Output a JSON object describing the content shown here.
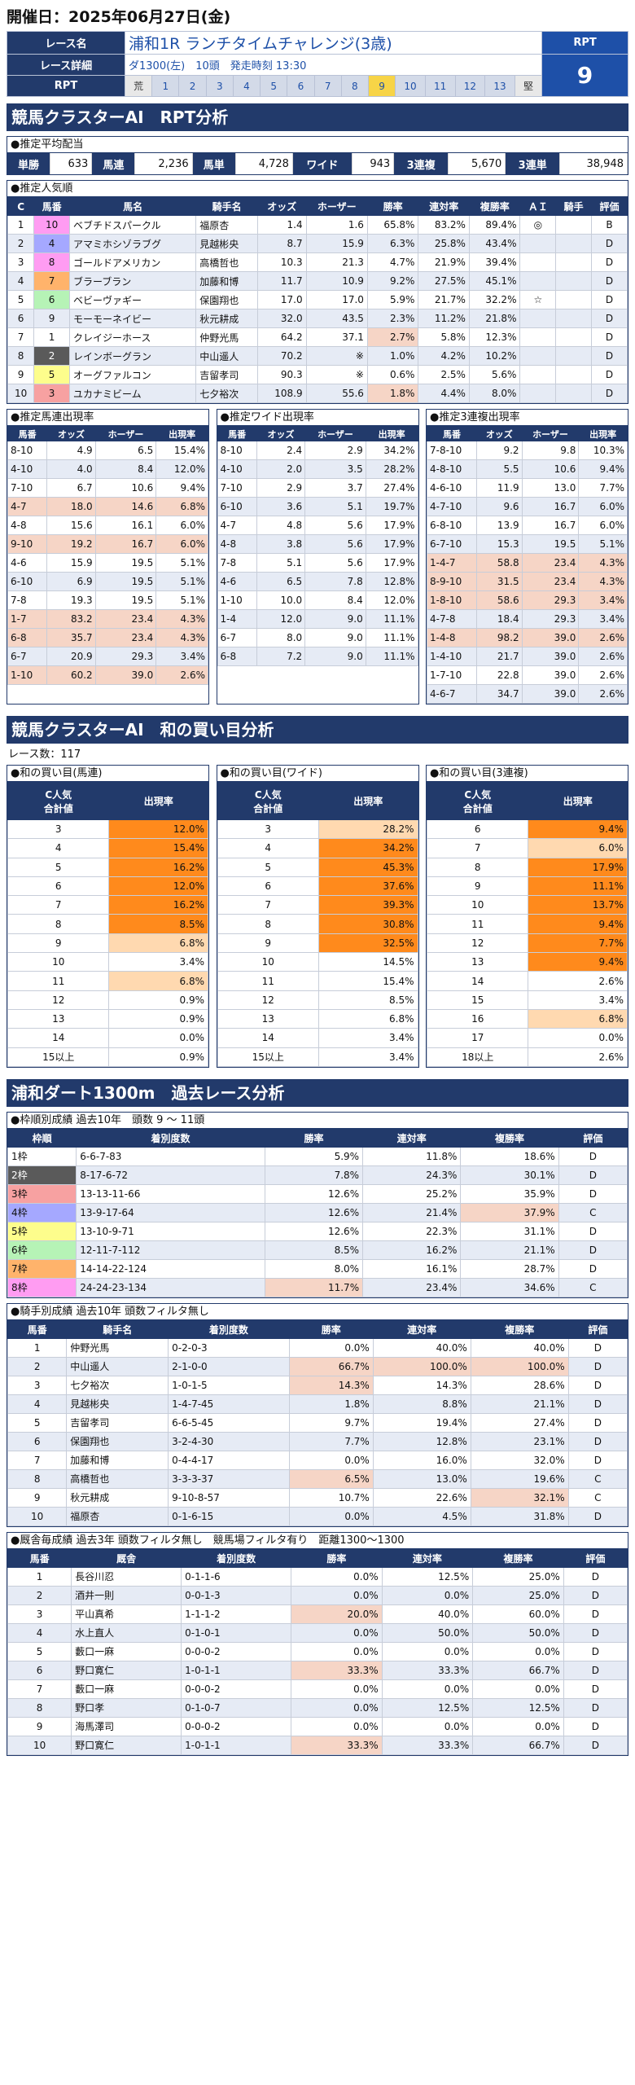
{
  "header": {
    "date_label": "開催日：2025年06月27日(金)",
    "race_name_label": "レース名",
    "race_name": "浦和1R ランチタイムチャレンジ(3歳)",
    "detail_label": "レース詳細",
    "detail": "ダ1300(左)　10頭　発走時刻 13:30",
    "rpt_label": "RPT",
    "rpt_scale": [
      "荒",
      "1",
      "2",
      "3",
      "4",
      "5",
      "6",
      "7",
      "8",
      "9",
      "10",
      "11",
      "12",
      "13",
      "堅"
    ],
    "rpt_selected": "9",
    "rpt_head": "RPT",
    "rpt_value": "9"
  },
  "section1": {
    "title": "競馬クラスターAI　RPT分析"
  },
  "payout": {
    "caption": "●推定平均配当",
    "items": [
      {
        "label": "単勝",
        "value": "633"
      },
      {
        "label": "馬連",
        "value": "2,236"
      },
      {
        "label": "馬単",
        "value": "4,728"
      },
      {
        "label": "ワイド",
        "value": "943"
      },
      {
        "label": "3連複",
        "value": "5,670"
      },
      {
        "label": "3連単",
        "value": "38,948"
      }
    ]
  },
  "popularity": {
    "caption": "●推定人気順",
    "headers": [
      "C",
      "馬番",
      "馬名",
      "騎手名",
      "オッズ",
      "ホーザー",
      "勝率",
      "連対率",
      "複勝率",
      "ＡＩ",
      "騎手",
      "評価"
    ],
    "rows": [
      {
        "c": "1",
        "waku": "8",
        "num": "10",
        "name": "ベブチドスパークル",
        "jockey": "福原杏",
        "odds": "1.4",
        "hoser": "1.6",
        "win": "65.8%",
        "place2": "83.2%",
        "place3": "89.4%",
        "ai": "◎",
        "jk": "",
        "grade": "B",
        "hl": ""
      },
      {
        "c": "2",
        "waku": "4",
        "num": "4",
        "name": "アマミホシゾラブグ",
        "jockey": "見越彬央",
        "odds": "8.7",
        "hoser": "15.9",
        "win": "6.3%",
        "place2": "25.8%",
        "place3": "43.4%",
        "ai": "",
        "jk": "",
        "grade": "D",
        "hl": ""
      },
      {
        "c": "3",
        "waku": "8",
        "num": "8",
        "name": "ゴールドアメリカン",
        "jockey": "高橋哲也",
        "odds": "10.3",
        "hoser": "21.3",
        "win": "4.7%",
        "place2": "21.9%",
        "place3": "39.4%",
        "ai": "",
        "jk": "",
        "grade": "D",
        "hl": ""
      },
      {
        "c": "4",
        "waku": "7",
        "num": "7",
        "name": "ブラーブラン",
        "jockey": "加藤和博",
        "odds": "11.7",
        "hoser": "10.9",
        "win": "9.2%",
        "place2": "27.5%",
        "place3": "45.1%",
        "ai": "",
        "jk": "",
        "grade": "D",
        "hl": ""
      },
      {
        "c": "5",
        "waku": "6",
        "num": "6",
        "name": "ベビーヴァギー",
        "jockey": "保園翔也",
        "odds": "17.0",
        "hoser": "17.0",
        "win": "5.9%",
        "place2": "21.7%",
        "place3": "32.2%",
        "ai": "☆",
        "jk": "",
        "grade": "D",
        "hl": ""
      },
      {
        "c": "6",
        "waku": "9",
        "num": "9",
        "name": "モーモーネイビー",
        "jockey": "秋元耕成",
        "odds": "32.0",
        "hoser": "43.5",
        "win": "2.3%",
        "place2": "11.2%",
        "place3": "21.8%",
        "ai": "",
        "jk": "",
        "grade": "D",
        "hl": ""
      },
      {
        "c": "7",
        "waku": "1",
        "num": "1",
        "name": "クレイジーホース",
        "jockey": "仲野光馬",
        "odds": "64.2",
        "hoser": "37.1",
        "win": "2.7%",
        "place2": "5.8%",
        "place3": "12.3%",
        "ai": "",
        "jk": "",
        "grade": "D",
        "hl": "win"
      },
      {
        "c": "8",
        "waku": "2",
        "num": "2",
        "name": "レインボーグラン",
        "jockey": "中山遥人",
        "odds": "70.2",
        "hoser": "※",
        "win": "1.0%",
        "place2": "4.2%",
        "place3": "10.2%",
        "ai": "",
        "jk": "",
        "grade": "D",
        "hl": ""
      },
      {
        "c": "9",
        "waku": "5",
        "num": "5",
        "name": "オーグファルコン",
        "jockey": "吉留孝司",
        "odds": "90.3",
        "hoser": "※",
        "win": "0.6%",
        "place2": "2.5%",
        "place3": "5.6%",
        "ai": "",
        "jk": "",
        "grade": "D",
        "hl": ""
      },
      {
        "c": "10",
        "waku": "3",
        "num": "3",
        "name": "ユカナミビーム",
        "jockey": "七夕裕次",
        "odds": "108.9",
        "hoser": "55.6",
        "win": "1.8%",
        "place2": "4.4%",
        "place3": "8.0%",
        "ai": "",
        "jk": "",
        "grade": "D",
        "hl": "win"
      }
    ]
  },
  "rates": [
    {
      "caption": "●推定馬連出現率",
      "headers": [
        "馬番",
        "オッズ",
        "ホーザー",
        "出現率"
      ],
      "rows": [
        [
          "8-10",
          "4.9",
          "6.5",
          "15.4%",
          ""
        ],
        [
          "4-10",
          "4.0",
          "8.4",
          "12.0%",
          ""
        ],
        [
          "7-10",
          "6.7",
          "10.6",
          "9.4%",
          ""
        ],
        [
          "4-7",
          "18.0",
          "14.6",
          "6.8%",
          "pk"
        ],
        [
          "4-8",
          "15.6",
          "16.1",
          "6.0%",
          ""
        ],
        [
          "9-10",
          "19.2",
          "16.7",
          "6.0%",
          "pk"
        ],
        [
          "4-6",
          "15.9",
          "19.5",
          "5.1%",
          ""
        ],
        [
          "6-10",
          "6.9",
          "19.5",
          "5.1%",
          ""
        ],
        [
          "7-8",
          "19.3",
          "19.5",
          "5.1%",
          ""
        ],
        [
          "1-7",
          "83.2",
          "23.4",
          "4.3%",
          "pk"
        ],
        [
          "6-8",
          "35.7",
          "23.4",
          "4.3%",
          "pk"
        ],
        [
          "6-7",
          "20.9",
          "29.3",
          "3.4%",
          ""
        ],
        [
          "1-10",
          "60.2",
          "39.0",
          "2.6%",
          "pk"
        ]
      ]
    },
    {
      "caption": "●推定ワイド出現率",
      "headers": [
        "馬番",
        "オッズ",
        "ホーザー",
        "出現率"
      ],
      "rows": [
        [
          "8-10",
          "2.4",
          "2.9",
          "34.2%",
          ""
        ],
        [
          "4-10",
          "2.0",
          "3.5",
          "28.2%",
          ""
        ],
        [
          "7-10",
          "2.9",
          "3.7",
          "27.4%",
          ""
        ],
        [
          "6-10",
          "3.6",
          "5.1",
          "19.7%",
          ""
        ],
        [
          "4-7",
          "4.8",
          "5.6",
          "17.9%",
          ""
        ],
        [
          "4-8",
          "3.8",
          "5.6",
          "17.9%",
          ""
        ],
        [
          "7-8",
          "5.1",
          "5.6",
          "17.9%",
          ""
        ],
        [
          "4-6",
          "6.5",
          "7.8",
          "12.8%",
          ""
        ],
        [
          "1-10",
          "10.0",
          "8.4",
          "12.0%",
          ""
        ],
        [
          "1-4",
          "12.0",
          "9.0",
          "11.1%",
          ""
        ],
        [
          "6-7",
          "8.0",
          "9.0",
          "11.1%",
          ""
        ],
        [
          "6-8",
          "7.2",
          "9.0",
          "11.1%",
          ""
        ]
      ]
    },
    {
      "caption": "●推定3連複出現率",
      "headers": [
        "馬番",
        "オッズ",
        "ホーザー",
        "出現率"
      ],
      "rows": [
        [
          "7-8-10",
          "9.2",
          "9.8",
          "10.3%",
          ""
        ],
        [
          "4-8-10",
          "5.5",
          "10.6",
          "9.4%",
          ""
        ],
        [
          "4-6-10",
          "11.9",
          "13.0",
          "7.7%",
          ""
        ],
        [
          "4-7-10",
          "9.6",
          "16.7",
          "6.0%",
          ""
        ],
        [
          "6-8-10",
          "13.9",
          "16.7",
          "6.0%",
          ""
        ],
        [
          "6-7-10",
          "15.3",
          "19.5",
          "5.1%",
          ""
        ],
        [
          "1-4-7",
          "58.8",
          "23.4",
          "4.3%",
          "pk"
        ],
        [
          "8-9-10",
          "31.5",
          "23.4",
          "4.3%",
          "pk"
        ],
        [
          "1-8-10",
          "58.6",
          "29.3",
          "3.4%",
          "pk"
        ],
        [
          "4-7-8",
          "18.4",
          "29.3",
          "3.4%",
          ""
        ],
        [
          "1-4-8",
          "98.2",
          "39.0",
          "2.6%",
          "pk"
        ],
        [
          "1-4-10",
          "21.7",
          "39.0",
          "2.6%",
          ""
        ],
        [
          "1-7-10",
          "22.8",
          "39.0",
          "2.6%",
          ""
        ],
        [
          "4-6-7",
          "34.7",
          "39.0",
          "2.6%",
          ""
        ]
      ]
    }
  ],
  "section2": {
    "title": "競馬クラスターAI　和の買い目分析",
    "race_count": "レース数：117"
  },
  "buy": [
    {
      "caption": "●和の買い目(馬連)",
      "headers": [
        "C人気\n合計値",
        "出現率"
      ],
      "rows": [
        [
          "3",
          "12.0%",
          "o1"
        ],
        [
          "4",
          "15.4%",
          "o1"
        ],
        [
          "5",
          "16.2%",
          "o1"
        ],
        [
          "6",
          "12.0%",
          "o1"
        ],
        [
          "7",
          "16.2%",
          "o1"
        ],
        [
          "8",
          "8.5%",
          "o1"
        ],
        [
          "9",
          "6.8%",
          "o3"
        ],
        [
          "10",
          "3.4%",
          ""
        ],
        [
          "11",
          "6.8%",
          "o3"
        ],
        [
          "12",
          "0.9%",
          ""
        ],
        [
          "13",
          "0.9%",
          ""
        ],
        [
          "14",
          "0.0%",
          ""
        ],
        [
          "15以上",
          "0.9%",
          ""
        ]
      ]
    },
    {
      "caption": "●和の買い目(ワイド)",
      "headers": [
        "C人気\n合計値",
        "出現率"
      ],
      "rows": [
        [
          "3",
          "28.2%",
          "o3"
        ],
        [
          "4",
          "34.2%",
          "o1"
        ],
        [
          "5",
          "45.3%",
          "o1"
        ],
        [
          "6",
          "37.6%",
          "o1"
        ],
        [
          "7",
          "39.3%",
          "o1"
        ],
        [
          "8",
          "30.8%",
          "o1"
        ],
        [
          "9",
          "32.5%",
          "o1"
        ],
        [
          "10",
          "14.5%",
          ""
        ],
        [
          "11",
          "15.4%",
          ""
        ],
        [
          "12",
          "8.5%",
          ""
        ],
        [
          "13",
          "6.8%",
          ""
        ],
        [
          "14",
          "3.4%",
          ""
        ],
        [
          "15以上",
          "3.4%",
          ""
        ]
      ]
    },
    {
      "caption": "●和の買い目(3連複)",
      "headers": [
        "C人気\n合計値",
        "出現率"
      ],
      "rows": [
        [
          "6",
          "9.4%",
          "o1"
        ],
        [
          "7",
          "6.0%",
          "o3"
        ],
        [
          "8",
          "17.9%",
          "o1"
        ],
        [
          "9",
          "11.1%",
          "o1"
        ],
        [
          "10",
          "13.7%",
          "o1"
        ],
        [
          "11",
          "9.4%",
          "o1"
        ],
        [
          "12",
          "7.7%",
          "o1"
        ],
        [
          "13",
          "9.4%",
          "o1"
        ],
        [
          "14",
          "2.6%",
          ""
        ],
        [
          "15",
          "3.4%",
          ""
        ],
        [
          "16",
          "6.8%",
          "o3"
        ],
        [
          "17",
          "0.0%",
          ""
        ],
        [
          "18以上",
          "2.6%",
          ""
        ]
      ]
    }
  ],
  "section3": {
    "title": "浦和ダート1300m　過去レース分析"
  },
  "waku_table": {
    "caption": "●枠順別成績 過去10年　頭数 9 ～ 11頭",
    "headers": [
      "枠順",
      "着別度数",
      "勝率",
      "連対率",
      "複勝率",
      "評価"
    ],
    "rows": [
      {
        "waku": "1枠",
        "cls": "w1",
        "rec": "6-6-7-83",
        "win": "5.9%",
        "p2": "11.8%",
        "p3": "18.6%",
        "grade": "D",
        "hw": "",
        "hp3": ""
      },
      {
        "waku": "2枠",
        "cls": "w2",
        "rec": "8-17-6-72",
        "win": "7.8%",
        "p2": "24.3%",
        "p3": "30.1%",
        "grade": "D",
        "hw": "",
        "hp3": ""
      },
      {
        "waku": "3枠",
        "cls": "w3",
        "rec": "13-13-11-66",
        "win": "12.6%",
        "p2": "25.2%",
        "p3": "35.9%",
        "grade": "D",
        "hw": "",
        "hp3": ""
      },
      {
        "waku": "4枠",
        "cls": "w4",
        "rec": "13-9-17-64",
        "win": "12.6%",
        "p2": "21.4%",
        "p3": "37.9%",
        "grade": "C",
        "hw": "",
        "hp3": "pk"
      },
      {
        "waku": "5枠",
        "cls": "w5",
        "rec": "13-10-9-71",
        "win": "12.6%",
        "p2": "22.3%",
        "p3": "31.1%",
        "grade": "D",
        "hw": "",
        "hp3": ""
      },
      {
        "waku": "6枠",
        "cls": "w6",
        "rec": "12-11-7-112",
        "win": "8.5%",
        "p2": "16.2%",
        "p3": "21.1%",
        "grade": "D",
        "hw": "",
        "hp3": ""
      },
      {
        "waku": "7枠",
        "cls": "w7",
        "rec": "14-14-22-124",
        "win": "8.0%",
        "p2": "16.1%",
        "p3": "28.7%",
        "grade": "D",
        "hw": "",
        "hp3": ""
      },
      {
        "waku": "8枠",
        "cls": "w8",
        "rec": "24-24-23-134",
        "win": "11.7%",
        "p2": "23.4%",
        "p3": "34.6%",
        "grade": "C",
        "hw": "pk",
        "hp3": ""
      }
    ]
  },
  "jockey_table": {
    "caption": "●騎手別成績 過去10年 頭数フィルタ無し",
    "headers": [
      "馬番",
      "騎手名",
      "着別度数",
      "勝率",
      "連対率",
      "複勝率",
      "評価"
    ],
    "rows": [
      {
        "num": "1",
        "name": "仲野光馬",
        "rec": "0-2-0-3",
        "win": "0.0%",
        "p2": "40.0%",
        "p3": "40.0%",
        "grade": "D",
        "hw": "",
        "hp2": "",
        "hp3": ""
      },
      {
        "num": "2",
        "name": "中山遥人",
        "rec": "2-1-0-0",
        "win": "66.7%",
        "p2": "100.0%",
        "p3": "100.0%",
        "grade": "D",
        "hw": "pk",
        "hp2": "pk",
        "hp3": "pk"
      },
      {
        "num": "3",
        "name": "七夕裕次",
        "rec": "1-0-1-5",
        "win": "14.3%",
        "p2": "14.3%",
        "p3": "28.6%",
        "grade": "D",
        "hw": "pk",
        "hp2": "",
        "hp3": ""
      },
      {
        "num": "4",
        "name": "見越彬央",
        "rec": "1-4-7-45",
        "win": "1.8%",
        "p2": "8.8%",
        "p3": "21.1%",
        "grade": "D",
        "hw": "",
        "hp2": "",
        "hp3": ""
      },
      {
        "num": "5",
        "name": "吉留孝司",
        "rec": "6-6-5-45",
        "win": "9.7%",
        "p2": "19.4%",
        "p3": "27.4%",
        "grade": "D",
        "hw": "",
        "hp2": "",
        "hp3": ""
      },
      {
        "num": "6",
        "name": "保園翔也",
        "rec": "3-2-4-30",
        "win": "7.7%",
        "p2": "12.8%",
        "p3": "23.1%",
        "grade": "D",
        "hw": "",
        "hp2": "",
        "hp3": ""
      },
      {
        "num": "7",
        "name": "加藤和博",
        "rec": "0-4-4-17",
        "win": "0.0%",
        "p2": "16.0%",
        "p3": "32.0%",
        "grade": "D",
        "hw": "",
        "hp2": "",
        "hp3": ""
      },
      {
        "num": "8",
        "name": "高橋哲也",
        "rec": "3-3-3-37",
        "win": "6.5%",
        "p2": "13.0%",
        "p3": "19.6%",
        "grade": "C",
        "hw": "pk",
        "hp2": "",
        "hp3": ""
      },
      {
        "num": "9",
        "name": "秋元耕成",
        "rec": "9-10-8-57",
        "win": "10.7%",
        "p2": "22.6%",
        "p3": "32.1%",
        "grade": "C",
        "hw": "",
        "hp2": "",
        "hp3": "pk"
      },
      {
        "num": "10",
        "name": "福原杏",
        "rec": "0-1-6-15",
        "win": "0.0%",
        "p2": "4.5%",
        "p3": "31.8%",
        "grade": "D",
        "hw": "",
        "hp2": "",
        "hp3": ""
      }
    ]
  },
  "stable_table": {
    "caption": "●厩舎毎成績 過去3年 頭数フィルタ無し　競馬場フィルタ有り　距離1300～1300",
    "headers": [
      "馬番",
      "厩舎",
      "着別度数",
      "勝率",
      "連対率",
      "複勝率",
      "評価"
    ],
    "rows": [
      {
        "num": "1",
        "name": "長谷川忍",
        "rec": "0-1-1-6",
        "win": "0.0%",
        "p2": "12.5%",
        "p3": "25.0%",
        "grade": "D",
        "hw": ""
      },
      {
        "num": "2",
        "name": "酒井一則",
        "rec": "0-0-1-3",
        "win": "0.0%",
        "p2": "0.0%",
        "p3": "25.0%",
        "grade": "D",
        "hw": ""
      },
      {
        "num": "3",
        "name": "平山真希",
        "rec": "1-1-1-2",
        "win": "20.0%",
        "p2": "40.0%",
        "p3": "60.0%",
        "grade": "D",
        "hw": "pk"
      },
      {
        "num": "4",
        "name": "水上直人",
        "rec": "0-1-0-1",
        "win": "0.0%",
        "p2": "50.0%",
        "p3": "50.0%",
        "grade": "D",
        "hw": ""
      },
      {
        "num": "5",
        "name": "藪口一麻",
        "rec": "0-0-0-2",
        "win": "0.0%",
        "p2": "0.0%",
        "p3": "0.0%",
        "grade": "D",
        "hw": ""
      },
      {
        "num": "6",
        "name": "野口寛仁",
        "rec": "1-0-1-1",
        "win": "33.3%",
        "p2": "33.3%",
        "p3": "66.7%",
        "grade": "D",
        "hw": "pk"
      },
      {
        "num": "7",
        "name": "藪口一麻",
        "rec": "0-0-0-2",
        "win": "0.0%",
        "p2": "0.0%",
        "p3": "0.0%",
        "grade": "D",
        "hw": ""
      },
      {
        "num": "8",
        "name": "野口孝",
        "rec": "0-1-0-7",
        "win": "0.0%",
        "p2": "12.5%",
        "p3": "12.5%",
        "grade": "D",
        "hw": ""
      },
      {
        "num": "9",
        "name": "海馬澤司",
        "rec": "0-0-0-2",
        "win": "0.0%",
        "p2": "0.0%",
        "p3": "0.0%",
        "grade": "D",
        "hw": ""
      },
      {
        "num": "10",
        "name": "野口寛仁",
        "rec": "1-0-1-1",
        "win": "33.3%",
        "p2": "33.3%",
        "p3": "66.7%",
        "grade": "D",
        "hw": "pk"
      }
    ]
  },
  "colors": {
    "navy": "#223a6b",
    "blue": "#1e50a8",
    "peach": "#f6d5c6",
    "orange": "#ff8a1c",
    "orange_light": "#ffd9b0",
    "rpt_selected": "#f7d447"
  }
}
